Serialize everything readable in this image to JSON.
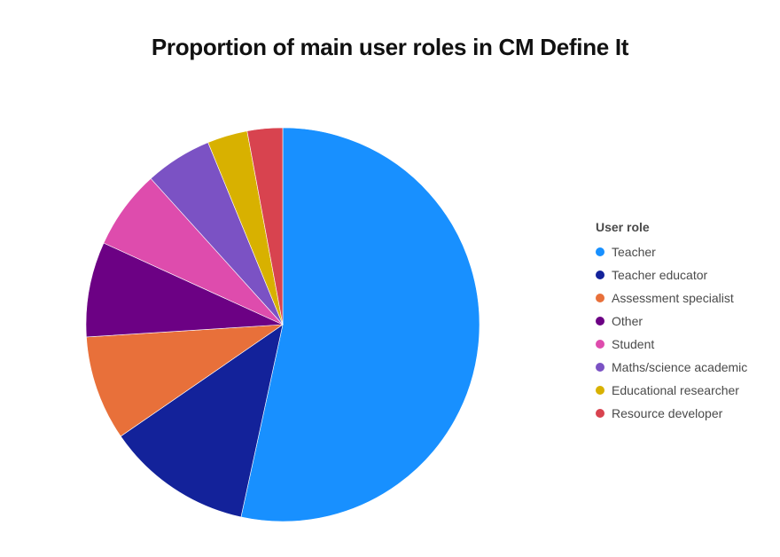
{
  "chart_data": {
    "type": "pie",
    "title": "Proportion of main user roles in CM Define It",
    "legend_title": "User role",
    "legend_position": "right",
    "start_angle": "top",
    "direction": "clockwise",
    "categories": [
      "Teacher",
      "Teacher educator",
      "Assessment specialist",
      "Other",
      "Student",
      "Maths/science academic",
      "Educational researcher",
      "Resource developer"
    ],
    "values": [
      53.4,
      12.0,
      8.6,
      7.8,
      6.5,
      5.5,
      3.3,
      2.9
    ],
    "colors": [
      "#1890ff",
      "#13229a",
      "#e8703a",
      "#6c0184",
      "#de4cad",
      "#7b52c4",
      "#d8b100",
      "#d8434f"
    ]
  }
}
